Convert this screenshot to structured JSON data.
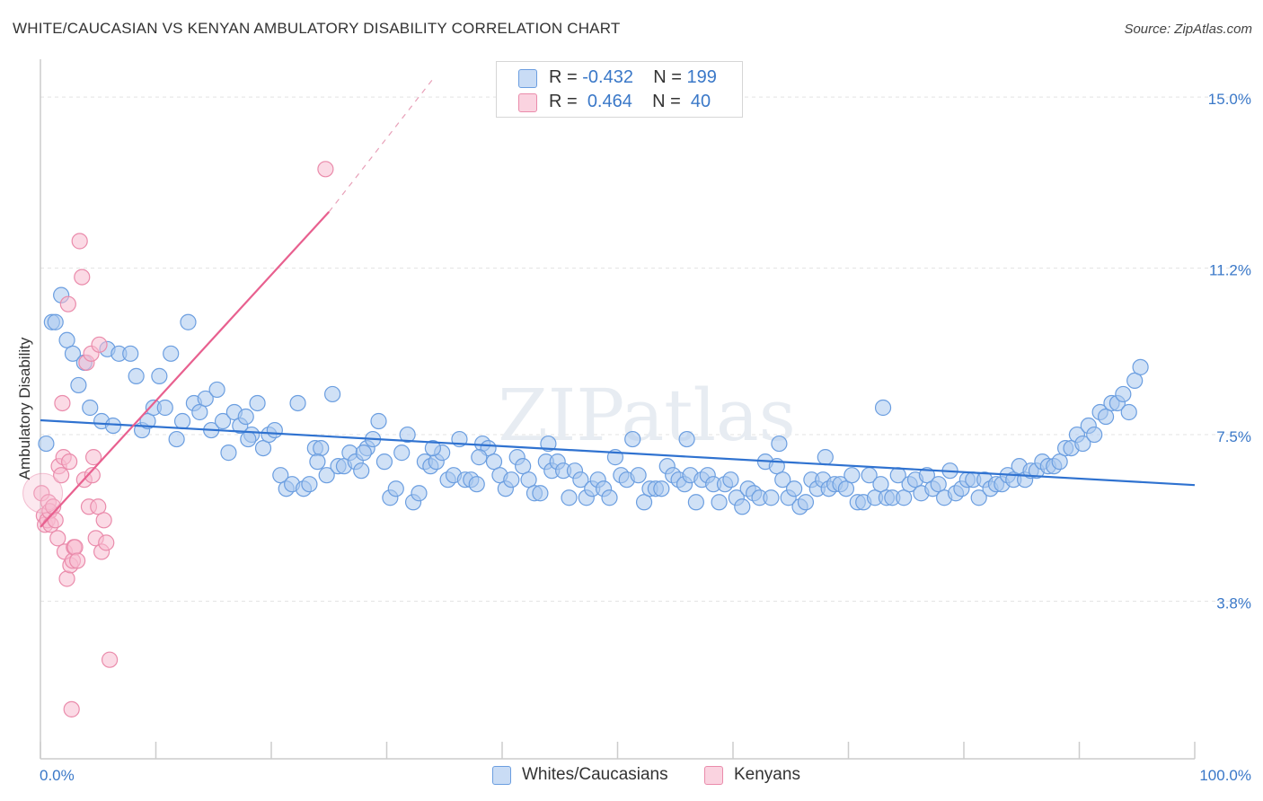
{
  "header": {
    "title": "WHITE/CAUCASIAN VS KENYAN AMBULATORY DISABILITY CORRELATION CHART",
    "source": "Source: ZipAtlas.com"
  },
  "legend": {
    "series": [
      {
        "r_label": "R =",
        "r_value": "-0.432",
        "n_label": "N =",
        "n_value": "199",
        "color": "#a9c8ef",
        "stroke": "#6b9ee0"
      },
      {
        "r_label": "R =",
        "r_value": "0.464",
        "n_label": "N =",
        "n_value": "40",
        "color": "#f7bcd0",
        "stroke": "#ea8bab"
      }
    ]
  },
  "bottom_legend": {
    "white": "Whites/Caucasians",
    "kenyan": "Kenyans"
  },
  "watermark": "ZIPatlas",
  "chart_data": {
    "type": "scatter",
    "title": "WHITE/CAUCASIAN VS KENYAN AMBULATORY DISABILITY CORRELATION CHART",
    "xlabel": "",
    "ylabel": "Ambulatory Disability",
    "xlim": [
      0,
      100
    ],
    "ylim": [
      0.3,
      15.6
    ],
    "x_tick_labels": {
      "left": "0.0%",
      "right": "100.0%"
    },
    "y_ticks": [
      {
        "value": 15.0,
        "label": "15.0%"
      },
      {
        "value": 11.2,
        "label": "11.2%"
      },
      {
        "value": 7.5,
        "label": "7.5%"
      },
      {
        "value": 3.8,
        "label": "3.8%"
      }
    ],
    "grid": true,
    "legend_position": "top-center",
    "series": [
      {
        "name": "Whites/Caucasians",
        "color": "#6b9ee0",
        "fill": "#a9c8ef",
        "trend": {
          "x": [
            0,
            100
          ],
          "y": [
            7.82,
            6.38
          ],
          "color": "#2f72d0"
        },
        "points": [
          [
            0.5,
            7.3
          ],
          [
            1.0,
            10.0
          ],
          [
            1.3,
            10.0
          ],
          [
            1.8,
            10.6
          ],
          [
            2.3,
            9.6
          ],
          [
            2.8,
            9.3
          ],
          [
            3.3,
            8.6
          ],
          [
            3.8,
            9.1
          ],
          [
            4.3,
            8.1
          ],
          [
            5.3,
            7.8
          ],
          [
            5.8,
            9.4
          ],
          [
            6.3,
            7.7
          ],
          [
            6.8,
            9.3
          ],
          [
            7.8,
            9.3
          ],
          [
            8.3,
            8.8
          ],
          [
            8.8,
            7.6
          ],
          [
            9.3,
            7.8
          ],
          [
            9.8,
            8.1
          ],
          [
            10.3,
            8.8
          ],
          [
            10.8,
            8.1
          ],
          [
            11.3,
            9.3
          ],
          [
            11.8,
            7.4
          ],
          [
            12.3,
            7.8
          ],
          [
            12.8,
            10.0
          ],
          [
            13.3,
            8.2
          ],
          [
            13.8,
            8.0
          ],
          [
            14.3,
            8.3
          ],
          [
            14.8,
            7.6
          ],
          [
            15.3,
            8.5
          ],
          [
            15.8,
            7.8
          ],
          [
            16.3,
            7.1
          ],
          [
            16.8,
            8.0
          ],
          [
            17.3,
            7.7
          ],
          [
            17.8,
            7.9
          ],
          [
            18.3,
            7.5
          ],
          [
            18.8,
            8.2
          ],
          [
            19.3,
            7.2
          ],
          [
            19.8,
            7.5
          ],
          [
            20.3,
            7.6
          ],
          [
            20.8,
            6.6
          ],
          [
            21.3,
            6.3
          ],
          [
            21.8,
            6.4
          ],
          [
            22.3,
            8.2
          ],
          [
            22.8,
            6.3
          ],
          [
            23.3,
            6.4
          ],
          [
            23.8,
            7.2
          ],
          [
            24.3,
            7.2
          ],
          [
            24.8,
            6.6
          ],
          [
            25.3,
            8.4
          ],
          [
            25.8,
            6.8
          ],
          [
            26.3,
            6.8
          ],
          [
            26.8,
            7.1
          ],
          [
            27.3,
            6.9
          ],
          [
            27.8,
            6.7
          ],
          [
            28.3,
            7.2
          ],
          [
            28.8,
            7.4
          ],
          [
            29.3,
            7.8
          ],
          [
            29.8,
            6.9
          ],
          [
            30.3,
            6.1
          ],
          [
            30.8,
            6.3
          ],
          [
            31.3,
            7.1
          ],
          [
            31.8,
            7.5
          ],
          [
            32.3,
            6.0
          ],
          [
            32.8,
            6.2
          ],
          [
            33.3,
            6.9
          ],
          [
            33.8,
            6.8
          ],
          [
            34.3,
            6.9
          ],
          [
            34.8,
            7.1
          ],
          [
            35.3,
            6.5
          ],
          [
            35.8,
            6.6
          ],
          [
            36.3,
            7.4
          ],
          [
            36.8,
            6.5
          ],
          [
            37.3,
            6.5
          ],
          [
            37.8,
            6.4
          ],
          [
            38.3,
            7.3
          ],
          [
            38.8,
            7.2
          ],
          [
            39.3,
            6.9
          ],
          [
            39.8,
            6.6
          ],
          [
            40.3,
            6.3
          ],
          [
            40.8,
            6.5
          ],
          [
            41.3,
            7.0
          ],
          [
            41.8,
            6.8
          ],
          [
            42.3,
            6.5
          ],
          [
            42.8,
            6.2
          ],
          [
            43.3,
            6.2
          ],
          [
            43.8,
            6.9
          ],
          [
            44.3,
            6.7
          ],
          [
            44.8,
            6.9
          ],
          [
            45.3,
            6.7
          ],
          [
            45.8,
            6.1
          ],
          [
            46.3,
            6.7
          ],
          [
            46.8,
            6.5
          ],
          [
            47.3,
            6.1
          ],
          [
            47.8,
            6.3
          ],
          [
            48.3,
            6.5
          ],
          [
            48.8,
            6.3
          ],
          [
            49.3,
            6.1
          ],
          [
            49.8,
            7.0
          ],
          [
            50.3,
            6.6
          ],
          [
            50.8,
            6.5
          ],
          [
            51.3,
            7.4
          ],
          [
            51.8,
            6.6
          ],
          [
            52.3,
            6.0
          ],
          [
            52.8,
            6.3
          ],
          [
            53.3,
            6.3
          ],
          [
            53.8,
            6.3
          ],
          [
            54.3,
            6.8
          ],
          [
            54.8,
            6.6
          ],
          [
            55.3,
            6.5
          ],
          [
            55.8,
            6.4
          ],
          [
            56.3,
            6.6
          ],
          [
            56.8,
            6.0
          ],
          [
            57.3,
            6.5
          ],
          [
            57.8,
            6.6
          ],
          [
            58.3,
            6.4
          ],
          [
            58.8,
            6.0
          ],
          [
            59.3,
            6.4
          ],
          [
            59.8,
            6.5
          ],
          [
            60.3,
            6.1
          ],
          [
            60.8,
            5.9
          ],
          [
            61.3,
            6.3
          ],
          [
            61.8,
            6.2
          ],
          [
            62.3,
            6.1
          ],
          [
            62.8,
            6.9
          ],
          [
            63.3,
            6.1
          ],
          [
            63.8,
            6.8
          ],
          [
            64.3,
            6.5
          ],
          [
            64.8,
            6.1
          ],
          [
            65.3,
            6.3
          ],
          [
            65.8,
            5.9
          ],
          [
            66.3,
            6.0
          ],
          [
            66.8,
            6.5
          ],
          [
            67.3,
            6.3
          ],
          [
            67.8,
            6.5
          ],
          [
            68.3,
            6.3
          ],
          [
            68.8,
            6.4
          ],
          [
            69.3,
            6.4
          ],
          [
            69.8,
            6.3
          ],
          [
            70.3,
            6.6
          ],
          [
            70.8,
            6.0
          ],
          [
            71.3,
            6.0
          ],
          [
            71.8,
            6.6
          ],
          [
            72.3,
            6.1
          ],
          [
            72.8,
            6.4
          ],
          [
            73.3,
            6.1
          ],
          [
            73.8,
            6.1
          ],
          [
            74.3,
            6.6
          ],
          [
            74.8,
            6.1
          ],
          [
            75.3,
            6.4
          ],
          [
            75.8,
            6.5
          ],
          [
            76.3,
            6.2
          ],
          [
            76.8,
            6.6
          ],
          [
            77.3,
            6.3
          ],
          [
            77.8,
            6.4
          ],
          [
            78.3,
            6.1
          ],
          [
            78.8,
            6.7
          ],
          [
            79.3,
            6.2
          ],
          [
            79.8,
            6.3
          ],
          [
            80.3,
            6.5
          ],
          [
            80.8,
            6.5
          ],
          [
            81.3,
            6.1
          ],
          [
            81.8,
            6.5
          ],
          [
            82.3,
            6.3
          ],
          [
            82.8,
            6.4
          ],
          [
            83.3,
            6.4
          ],
          [
            83.8,
            6.6
          ],
          [
            84.3,
            6.5
          ],
          [
            84.8,
            6.8
          ],
          [
            85.3,
            6.5
          ],
          [
            85.8,
            6.7
          ],
          [
            86.3,
            6.7
          ],
          [
            86.8,
            6.9
          ],
          [
            87.3,
            6.8
          ],
          [
            87.8,
            6.8
          ],
          [
            88.3,
            6.9
          ],
          [
            88.8,
            7.2
          ],
          [
            89.3,
            7.2
          ],
          [
            89.8,
            7.5
          ],
          [
            90.3,
            7.3
          ],
          [
            90.8,
            7.7
          ],
          [
            91.3,
            7.5
          ],
          [
            91.8,
            8.0
          ],
          [
            92.3,
            7.9
          ],
          [
            92.8,
            8.2
          ],
          [
            93.3,
            8.2
          ],
          [
            93.8,
            8.4
          ],
          [
            94.3,
            8.0
          ],
          [
            94.8,
            8.7
          ],
          [
            95.3,
            9.0
          ],
          [
            73.0,
            8.1
          ],
          [
            68.0,
            7.0
          ],
          [
            64.0,
            7.3
          ],
          [
            56.0,
            7.4
          ],
          [
            44.0,
            7.3
          ],
          [
            38.0,
            7.0
          ],
          [
            34.0,
            7.2
          ],
          [
            28.0,
            7.1
          ],
          [
            24.0,
            6.9
          ],
          [
            18.0,
            7.4
          ]
        ]
      },
      {
        "name": "Kenyans",
        "color": "#ea8bab",
        "fill": "#f7bcd0",
        "trend": {
          "x": [
            0,
            25.0
          ],
          "y": [
            5.45,
            12.45
          ],
          "dashed_to": [
            34.0,
            15.4
          ],
          "color": "#e8608f"
        },
        "points": [
          [
            0.1,
            6.2
          ],
          [
            0.3,
            5.7
          ],
          [
            0.4,
            5.5
          ],
          [
            0.6,
            5.6
          ],
          [
            0.7,
            6.0
          ],
          [
            0.8,
            5.8
          ],
          [
            0.9,
            5.5
          ],
          [
            1.1,
            5.9
          ],
          [
            1.3,
            5.6
          ],
          [
            1.5,
            5.2
          ],
          [
            1.6,
            6.8
          ],
          [
            1.8,
            6.6
          ],
          [
            1.9,
            8.2
          ],
          [
            2.0,
            7.0
          ],
          [
            2.1,
            4.9
          ],
          [
            2.3,
            4.3
          ],
          [
            2.5,
            6.9
          ],
          [
            2.6,
            4.6
          ],
          [
            2.8,
            4.7
          ],
          [
            2.9,
            5.0
          ],
          [
            3.0,
            5.0
          ],
          [
            3.2,
            4.7
          ],
          [
            3.4,
            11.8
          ],
          [
            3.6,
            11.0
          ],
          [
            3.8,
            6.5
          ],
          [
            4.0,
            9.1
          ],
          [
            4.2,
            5.9
          ],
          [
            4.4,
            9.3
          ],
          [
            4.5,
            6.6
          ],
          [
            4.6,
            7.0
          ],
          [
            4.8,
            5.2
          ],
          [
            5.0,
            5.9
          ],
          [
            5.1,
            9.5
          ],
          [
            5.3,
            4.9
          ],
          [
            5.5,
            5.6
          ],
          [
            5.7,
            5.1
          ],
          [
            6.0,
            2.5
          ],
          [
            2.7,
            1.4
          ],
          [
            24.7,
            13.4
          ],
          [
            2.4,
            10.4
          ]
        ]
      }
    ]
  }
}
